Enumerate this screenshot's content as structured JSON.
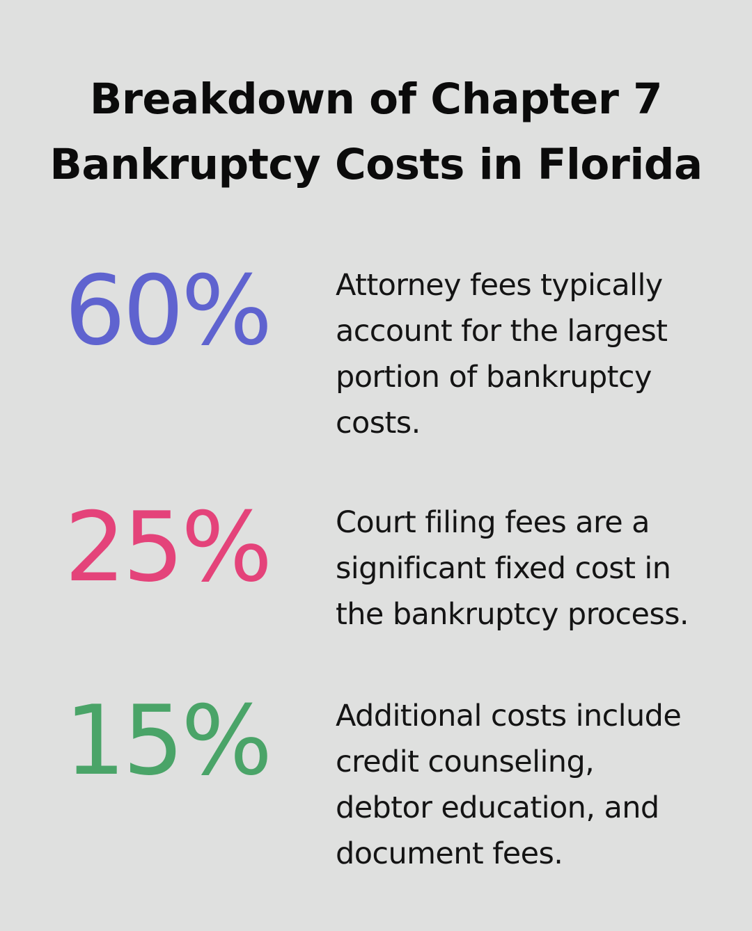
{
  "title_lines": [
    "Breakdown of Chapter 7",
    "Bankruptcy Costs in Florida"
  ],
  "colors": {
    "background": "#dfe0df",
    "stat_1": "#5f63cf",
    "stat_2": "#e4437a",
    "stat_3": "#4aa468"
  },
  "chart_data": {
    "type": "table",
    "title": "Breakdown of Chapter 7 Bankruptcy Costs in Florida",
    "stats": [
      {
        "value": 60,
        "label": "60%",
        "color": "#5f63cf",
        "description_lines": [
          "Attorney fees typically",
          "account for the largest",
          "portion of bankruptcy",
          "costs."
        ]
      },
      {
        "value": 25,
        "label": "25%",
        "color": "#e4437a",
        "description_lines": [
          "Court filing fees are a",
          "significant fixed cost in",
          "the bankruptcy process."
        ]
      },
      {
        "value": 15,
        "label": "15%",
        "color": "#4aa468",
        "description_lines": [
          "Additional costs include",
          "credit counseling,",
          "debtor education, and",
          "document fees."
        ]
      }
    ]
  }
}
